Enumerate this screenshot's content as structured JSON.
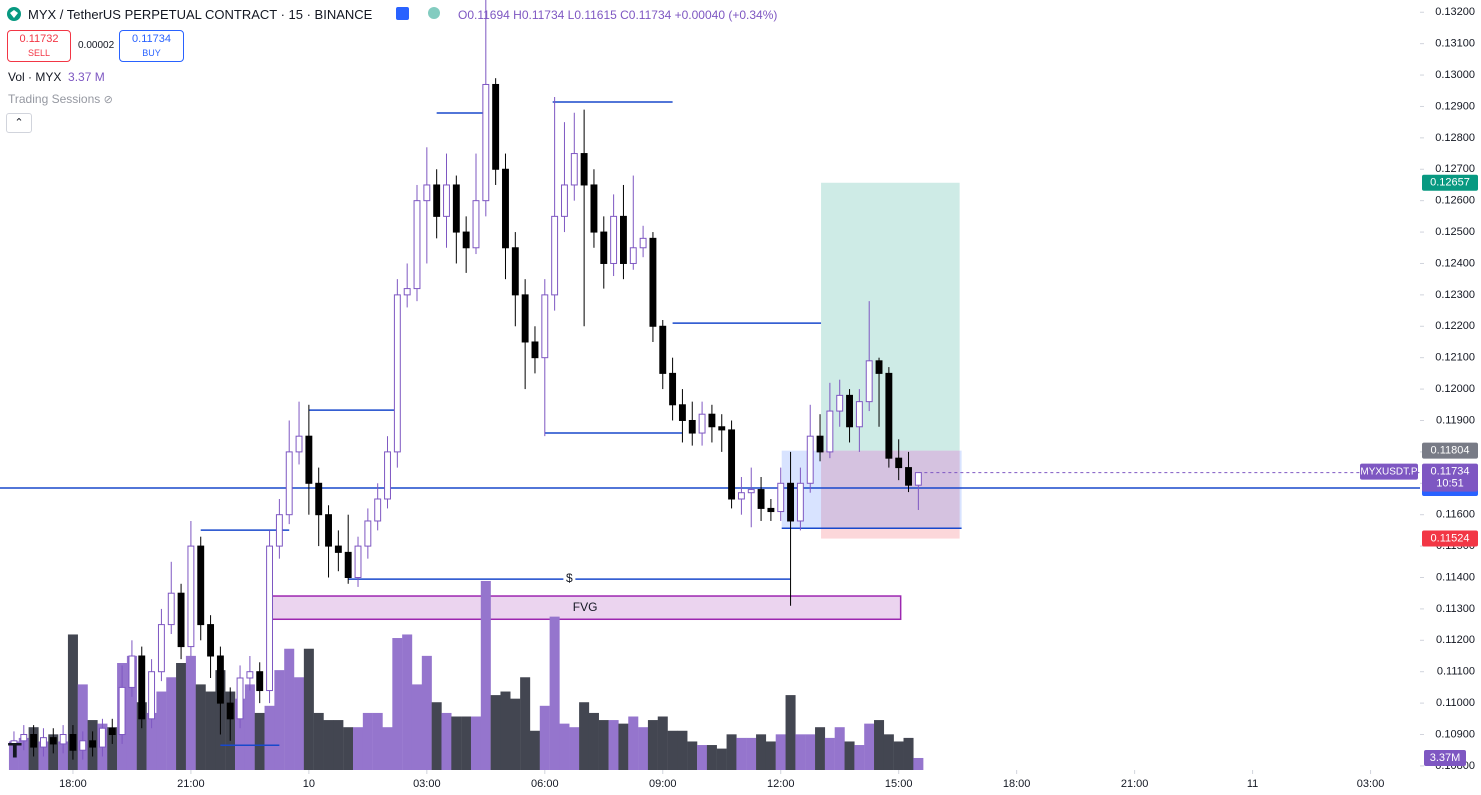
{
  "header": {
    "title": "MYX / TetherUS PERPETUAL CONTRACT · 15 · BINANCE",
    "ohlc": "O0.11694 H0.11734 L0.11615 C0.11734 +0.00040 (+0.34%)",
    "sell_price": "0.11732",
    "sell_label": "SELL",
    "spread": "0.00002",
    "buy_price": "0.11734",
    "buy_label": "BUY",
    "volume_name": "Vol · MYX",
    "volume_value": "3.37 M",
    "sessions": "Trading Sessions",
    "symbol_badge": "MYXUSDT.P",
    "countdown": "10:51"
  },
  "chart_data": {
    "type": "candlestick",
    "xlim": [
      -1.42,
      143.03
    ],
    "ylim": [
      0.10787,
      0.13239
    ],
    "vlim": [
      0,
      60
    ],
    "up_color": "#7e57c2",
    "down_color": "#000000",
    "volume_up_color": "#9575cd",
    "volume_down_color": "#434651",
    "xticks": [
      {
        "value": 6,
        "label": "18:00"
      },
      {
        "value": 18,
        "label": "21:00"
      },
      {
        "value": 30,
        "label": "10"
      },
      {
        "value": 42,
        "label": "03:00"
      },
      {
        "value": 54,
        "label": "06:00"
      },
      {
        "value": 66,
        "label": "09:00"
      },
      {
        "value": 78,
        "label": "12:00"
      },
      {
        "value": 90,
        "label": "15:00"
      },
      {
        "value": 102,
        "label": "18:00"
      },
      {
        "value": 114,
        "label": "21:00"
      },
      {
        "value": 126,
        "label": "11"
      },
      {
        "value": 138,
        "label": "03:00"
      }
    ],
    "yticks": [
      {
        "value": 0.132,
        "label": "0.13200"
      },
      {
        "value": 0.131,
        "label": "0.13100"
      },
      {
        "value": 0.13,
        "label": "0.13000"
      },
      {
        "value": 0.129,
        "label": "0.12900"
      },
      {
        "value": 0.128,
        "label": "0.12800"
      },
      {
        "value": 0.127,
        "label": "0.12700"
      },
      {
        "value": 0.126,
        "label": "0.12600"
      },
      {
        "value": 0.125,
        "label": "0.12500"
      },
      {
        "value": 0.124,
        "label": "0.12400"
      },
      {
        "value": 0.123,
        "label": "0.12300"
      },
      {
        "value": 0.122,
        "label": "0.12200"
      },
      {
        "value": 0.121,
        "label": "0.12100"
      },
      {
        "value": 0.12,
        "label": "0.12000"
      },
      {
        "value": 0.119,
        "label": "0.11900"
      },
      {
        "value": 0.118,
        "label": "0.11800"
      },
      {
        "value": 0.117,
        "label": "0.11700"
      },
      {
        "value": 0.116,
        "label": "0.11600"
      },
      {
        "value": 0.115,
        "label": "0.11500"
      },
      {
        "value": 0.114,
        "label": "0.11400"
      },
      {
        "value": 0.113,
        "label": "0.11300"
      },
      {
        "value": 0.112,
        "label": "0.11200"
      },
      {
        "value": 0.111,
        "label": "0.11100"
      },
      {
        "value": 0.11,
        "label": "0.11000"
      },
      {
        "value": 0.109,
        "label": "0.10900"
      },
      {
        "value": 0.108,
        "label": "0.10800"
      }
    ],
    "open": [
      0.1087,
      0.1088,
      0.109,
      0.1086,
      0.1089,
      0.1087,
      0.109,
      0.1085,
      0.1088,
      0.1086,
      0.1092,
      0.109,
      0.1105,
      0.1115,
      0.1095,
      0.111,
      0.1125,
      0.1135,
      0.1118,
      0.115,
      0.1125,
      0.1115,
      0.11,
      0.1095,
      0.1108,
      0.111,
      0.1104,
      0.115,
      0.116,
      0.118,
      0.1185,
      0.117,
      0.116,
      0.115,
      0.1148,
      0.114,
      0.115,
      0.1158,
      0.1165,
      0.118,
      0.123,
      0.1232,
      0.126,
      0.1265,
      0.1255,
      0.1265,
      0.125,
      0.1245,
      0.126,
      0.1297,
      0.127,
      0.1245,
      0.123,
      0.1215,
      0.121,
      0.123,
      0.1255,
      0.1265,
      0.1275,
      0.1265,
      0.125,
      0.124,
      0.1255,
      0.124,
      0.1245,
      0.1248,
      0.122,
      0.1205,
      0.1195,
      0.119,
      0.1186,
      0.1192,
      0.1188,
      0.1187,
      0.1165,
      0.1167,
      0.1168,
      0.1162,
      0.1161,
      0.117,
      0.1158,
      0.117,
      0.1185,
      0.118,
      0.1193,
      0.1198,
      0.1188,
      0.1196,
      0.1209,
      0.1205,
      0.1178,
      0.1175,
      0.11694
    ],
    "high": [
      0.1091,
      0.1093,
      0.1093,
      0.1092,
      0.1092,
      0.1093,
      0.1093,
      0.1091,
      0.1091,
      0.1095,
      0.1095,
      0.1112,
      0.112,
      0.1118,
      0.1114,
      0.113,
      0.1145,
      0.1138,
      0.1158,
      0.1153,
      0.1128,
      0.1118,
      0.1105,
      0.1112,
      0.1115,
      0.1113,
      0.1155,
      0.1165,
      0.119,
      0.1196,
      0.1195,
      0.1175,
      0.1163,
      0.1155,
      0.116,
      0.1153,
      0.1162,
      0.117,
      0.1185,
      0.1235,
      0.124,
      0.1265,
      0.1277,
      0.127,
      0.1275,
      0.1268,
      0.1255,
      0.1275,
      0.133,
      0.1299,
      0.1275,
      0.125,
      0.1235,
      0.122,
      0.1235,
      0.1293,
      0.1285,
      0.1288,
      0.1289,
      0.127,
      0.1255,
      0.1262,
      0.1265,
      0.1268,
      0.1252,
      0.125,
      0.1222,
      0.121,
      0.12,
      0.1196,
      0.1196,
      0.1195,
      0.1192,
      0.119,
      0.1172,
      0.1175,
      0.1172,
      0.1165,
      0.1175,
      0.118,
      0.1175,
      0.1195,
      0.1192,
      0.1202,
      0.1203,
      0.12,
      0.12,
      0.1228,
      0.121,
      0.1207,
      0.1184,
      0.118,
      0.11734
    ],
    "low": [
      0.1084,
      0.1085,
      0.1083,
      0.1083,
      0.1084,
      0.1084,
      0.1082,
      0.1082,
      0.1083,
      0.1083,
      0.1087,
      0.1087,
      0.1102,
      0.1092,
      0.1092,
      0.1107,
      0.1122,
      0.1114,
      0.1115,
      0.112,
      0.1108,
      0.109,
      0.1088,
      0.1092,
      0.1104,
      0.11,
      0.11,
      0.1146,
      0.1157,
      0.1176,
      0.116,
      0.115,
      0.114,
      0.1142,
      0.1138,
      0.1137,
      0.1146,
      0.1155,
      0.1162,
      0.1175,
      0.1226,
      0.1228,
      0.124,
      0.1248,
      0.1245,
      0.124,
      0.1237,
      0.1243,
      0.1255,
      0.1265,
      0.1235,
      0.122,
      0.12,
      0.1205,
      0.1185,
      0.1225,
      0.125,
      0.126,
      0.122,
      0.1245,
      0.1232,
      0.1236,
      0.1235,
      0.1238,
      0.1242,
      0.1215,
      0.12,
      0.119,
      0.1183,
      0.1182,
      0.1182,
      0.1183,
      0.118,
      0.1162,
      0.116,
      0.1156,
      0.1158,
      0.1158,
      0.1158,
      0.1131,
      0.1155,
      0.1167,
      0.1177,
      0.1178,
      0.1188,
      0.1183,
      0.118,
      0.1193,
      0.1188,
      0.1175,
      0.1171,
      0.11672,
      0.11615
    ],
    "close": [
      0.1088,
      0.109,
      0.1086,
      0.1089,
      0.1087,
      0.109,
      0.1085,
      0.1088,
      0.1086,
      0.1092,
      0.109,
      0.1105,
      0.1115,
      0.1095,
      0.111,
      0.1125,
      0.1135,
      0.1118,
      0.115,
      0.1125,
      0.1115,
      0.11,
      0.1095,
      0.1108,
      0.111,
      0.1104,
      0.115,
      0.116,
      0.118,
      0.1185,
      0.117,
      0.116,
      0.115,
      0.1148,
      0.114,
      0.115,
      0.1158,
      0.1165,
      0.118,
      0.123,
      0.1232,
      0.126,
      0.1265,
      0.1255,
      0.1265,
      0.125,
      0.1245,
      0.126,
      0.1297,
      0.127,
      0.1245,
      0.123,
      0.1215,
      0.121,
      0.123,
      0.1255,
      0.1265,
      0.1275,
      0.1265,
      0.125,
      0.124,
      0.1255,
      0.124,
      0.1245,
      0.1248,
      0.122,
      0.1205,
      0.1195,
      0.119,
      0.1186,
      0.1192,
      0.1188,
      0.1187,
      0.1165,
      0.1167,
      0.1168,
      0.1162,
      0.1161,
      0.117,
      0.1158,
      0.117,
      0.1185,
      0.118,
      0.1193,
      0.1198,
      0.1188,
      0.1196,
      0.1209,
      0.1205,
      0.1178,
      0.1175,
      0.11694,
      0.11734
    ],
    "volume": [
      8,
      9,
      12,
      8,
      10,
      8,
      38,
      24,
      14,
      13,
      12,
      30,
      32,
      19,
      16,
      22,
      26,
      30,
      32,
      24,
      22,
      28,
      22,
      20,
      24,
      16,
      18,
      28,
      34,
      26,
      34,
      16,
      14,
      14,
      12,
      12,
      16,
      16,
      12,
      37,
      38,
      24,
      32,
      19,
      16,
      15,
      15,
      15,
      53,
      21,
      22,
      20,
      26,
      11,
      18,
      43,
      13,
      12,
      19,
      16,
      14,
      14,
      13,
      15,
      12,
      14,
      15,
      11,
      11,
      8,
      7,
      7,
      6,
      10,
      9,
      9,
      10,
      8,
      10,
      21,
      10,
      10,
      12,
      9,
      12,
      8,
      7,
      13,
      14,
      10,
      8,
      9,
      3.37
    ],
    "volume_value_labels": {
      "92": "3.37M"
    },
    "levels": [
      {
        "price": 0.12879
      },
      {
        "price": 0.12914
      },
      {
        "price": 0.1221
      },
      {
        "price": 0.11933
      },
      {
        "price": 0.1186
      },
      {
        "price": 0.11551
      },
      {
        "price": 0.11395,
        "label": "$"
      },
      {
        "price": 0.10866
      },
      {
        "price": 0.11685
      },
      {
        "price": 0.11557
      }
    ],
    "fvg": {
      "top": 0.11341,
      "bottom": 0.11267,
      "label": "FVG"
    },
    "position": {
      "target": 0.12657,
      "entry": 0.11804,
      "stop": 0.11524
    }
  }
}
